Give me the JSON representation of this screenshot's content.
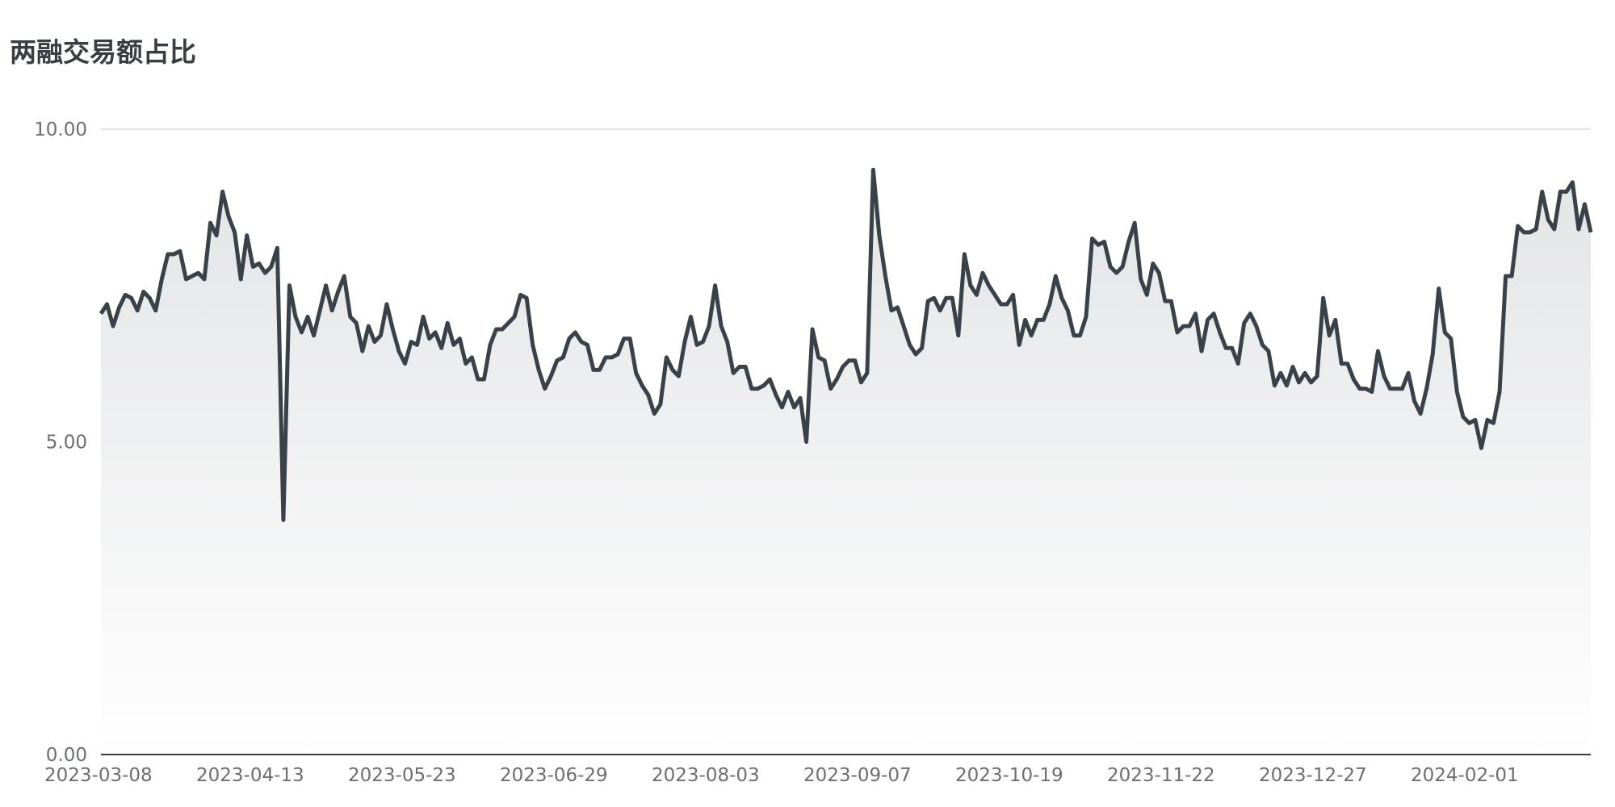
{
  "chart_data": {
    "type": "area",
    "title": "两融交易额占比",
    "y_ticks": [
      "0.00",
      "5.00",
      "10.00"
    ],
    "ylim": [
      0,
      10
    ],
    "grid": true,
    "x_tick_labels": [
      "2023-03-08",
      "2023-04-13",
      "2023-05-23",
      "2023-06-29",
      "2023-08-03",
      "2023-09-07",
      "2023-10-19",
      "2023-11-22",
      "2023-12-27",
      "2024-02-01"
    ],
    "line_color": "#3b4148",
    "fill_color": "#e3e4e6",
    "values": [
      7.05,
      7.2,
      6.85,
      7.15,
      7.35,
      7.3,
      7.1,
      7.4,
      7.3,
      7.1,
      7.6,
      8.0,
      8.0,
      8.05,
      7.6,
      7.65,
      7.7,
      7.6,
      8.5,
      8.3,
      9.0,
      8.6,
      8.35,
      7.6,
      8.3,
      7.8,
      7.85,
      7.7,
      7.8,
      8.1,
      3.75,
      7.5,
      7.0,
      6.75,
      7.0,
      6.7,
      7.1,
      7.5,
      7.1,
      7.4,
      7.65,
      7.0,
      6.9,
      6.45,
      6.85,
      6.6,
      6.7,
      7.2,
      6.8,
      6.45,
      6.25,
      6.6,
      6.55,
      7.0,
      6.65,
      6.75,
      6.5,
      6.9,
      6.55,
      6.65,
      6.25,
      6.35,
      6.0,
      6.0,
      6.55,
      6.8,
      6.8,
      6.9,
      7.0,
      7.35,
      7.3,
      6.55,
      6.15,
      5.85,
      6.05,
      6.3,
      6.35,
      6.65,
      6.75,
      6.6,
      6.55,
      6.15,
      6.15,
      6.35,
      6.35,
      6.4,
      6.65,
      6.65,
      6.1,
      5.9,
      5.75,
      5.45,
      5.6,
      6.35,
      6.15,
      6.05,
      6.6,
      7.0,
      6.55,
      6.6,
      6.85,
      7.5,
      6.85,
      6.6,
      6.1,
      6.2,
      6.2,
      5.85,
      5.85,
      5.9,
      6.0,
      5.75,
      5.55,
      5.8,
      5.55,
      5.7,
      5.0,
      6.8,
      6.35,
      6.3,
      5.85,
      6.0,
      6.2,
      6.3,
      6.3,
      5.95,
      6.1,
      9.35,
      8.3,
      7.65,
      7.1,
      7.15,
      6.85,
      6.55,
      6.4,
      6.5,
      7.25,
      7.3,
      7.1,
      7.3,
      7.3,
      6.7,
      8.0,
      7.5,
      7.35,
      7.7,
      7.5,
      7.35,
      7.2,
      7.2,
      7.35,
      6.55,
      6.95,
      6.7,
      6.95,
      6.95,
      7.2,
      7.65,
      7.3,
      7.1,
      6.7,
      6.7,
      7.0,
      8.25,
      8.15,
      8.2,
      7.8,
      7.7,
      7.8,
      8.2,
      8.5,
      7.6,
      7.35,
      7.85,
      7.7,
      7.25,
      7.25,
      6.75,
      6.85,
      6.85,
      7.05,
      6.45,
      6.95,
      7.05,
      6.75,
      6.5,
      6.5,
      6.25,
      6.9,
      7.05,
      6.85,
      6.55,
      6.45,
      5.9,
      6.1,
      5.9,
      6.2,
      5.95,
      6.1,
      5.95,
      6.05,
      7.3,
      6.7,
      6.95,
      6.25,
      6.25,
      6.0,
      5.85,
      5.85,
      5.8,
      6.45,
      6.05,
      5.85,
      5.85,
      5.85,
      6.1,
      5.65,
      5.45,
      5.85,
      6.4,
      7.45,
      6.75,
      6.65,
      5.8,
      5.4,
      5.3,
      5.35,
      4.9,
      5.35,
      5.3,
      5.8,
      7.65,
      7.65,
      8.45,
      8.35,
      8.35,
      8.4,
      9.0,
      8.55,
      8.4,
      9.0,
      9.0,
      9.15,
      8.4,
      8.8,
      8.35
    ]
  }
}
